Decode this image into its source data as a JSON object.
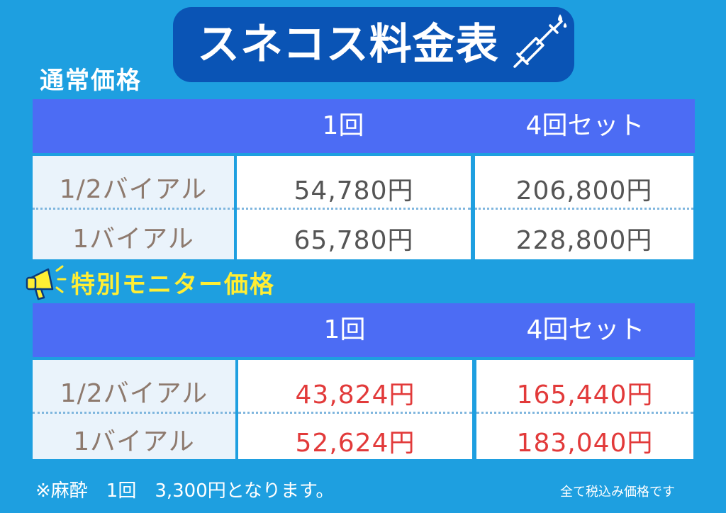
{
  "title": "スネコス料金表",
  "regular": {
    "label": "通常価格",
    "headers": [
      "1回",
      "4回セット"
    ],
    "rows": [
      {
        "label": "1/2バイアル",
        "once": "54,780円",
        "set4": "206,800円"
      },
      {
        "label": "1バイアル",
        "once": "65,780円",
        "set4": "228,800円"
      }
    ]
  },
  "monitor": {
    "label": "特別モニター価格",
    "headers": [
      "1回",
      "4回セット"
    ],
    "rows": [
      {
        "label": "1/2バイアル",
        "once": "43,824円",
        "set4": "165,440円"
      },
      {
        "label": "1バイアル",
        "once": "52,624円",
        "set4": "183,040円"
      }
    ]
  },
  "footnote": "※麻酔　1回　3,300円となります。",
  "tax_note": "全て税込み価格です",
  "icons": {
    "title": "syringe-icon",
    "monitor": "megaphone-icon"
  },
  "colors": {
    "background": "#1e9fe0",
    "banner": "#0a54b5",
    "header": "#4c6cf4",
    "highlight": "#e23a3a",
    "monitor_label": "#ffee33"
  }
}
